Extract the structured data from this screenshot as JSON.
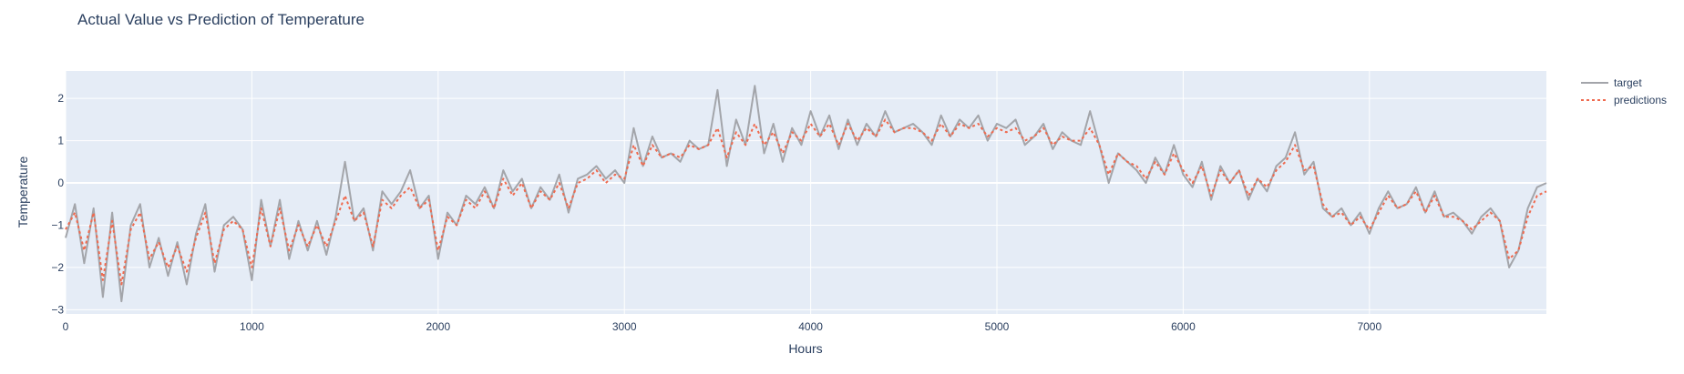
{
  "chart_data": {
    "type": "line",
    "title": "Actual Value vs Prediction of Temperature",
    "xlabel": "Hours",
    "ylabel": "Temperature",
    "xlim": [
      0,
      7950
    ],
    "ylim": [
      -3.1,
      2.65
    ],
    "x_ticks": [
      0,
      1000,
      2000,
      3000,
      4000,
      5000,
      6000,
      7000
    ],
    "y_ticks": [
      -3,
      -2,
      -1,
      0,
      1,
      2
    ],
    "grid": true,
    "legend_position": "top-right",
    "colors": {
      "target": "#a3a5aa",
      "predictions": "#ef6a4f",
      "plot_bg": "#e5ecf6",
      "grid": "#ffffff"
    },
    "series": [
      {
        "name": "target",
        "line": "solid",
        "x": [
          0,
          50,
          100,
          150,
          200,
          250,
          300,
          350,
          400,
          450,
          500,
          550,
          600,
          650,
          700,
          750,
          800,
          850,
          900,
          950,
          1000,
          1050,
          1100,
          1150,
          1200,
          1250,
          1300,
          1350,
          1400,
          1450,
          1500,
          1550,
          1600,
          1650,
          1700,
          1750,
          1800,
          1850,
          1900,
          1950,
          2000,
          2050,
          2100,
          2150,
          2200,
          2250,
          2300,
          2350,
          2400,
          2450,
          2500,
          2550,
          2600,
          2650,
          2700,
          2750,
          2800,
          2850,
          2900,
          2950,
          3000,
          3050,
          3100,
          3150,
          3200,
          3250,
          3300,
          3350,
          3400,
          3450,
          3500,
          3550,
          3600,
          3650,
          3700,
          3750,
          3800,
          3850,
          3900,
          3950,
          4000,
          4050,
          4100,
          4150,
          4200,
          4250,
          4300,
          4350,
          4400,
          4450,
          4500,
          4550,
          4600,
          4650,
          4700,
          4750,
          4800,
          4850,
          4900,
          4950,
          5000,
          5050,
          5100,
          5150,
          5200,
          5250,
          5300,
          5350,
          5400,
          5450,
          5500,
          5550,
          5600,
          5650,
          5700,
          5750,
          5800,
          5850,
          5900,
          5950,
          6000,
          6050,
          6100,
          6150,
          6200,
          6250,
          6300,
          6350,
          6400,
          6450,
          6500,
          6550,
          6600,
          6650,
          6700,
          6750,
          6800,
          6850,
          6900,
          6950,
          7000,
          7050,
          7100,
          7150,
          7200,
          7250,
          7300,
          7350,
          7400,
          7450,
          7500,
          7550,
          7600,
          7650,
          7700,
          7750,
          7800,
          7850,
          7900,
          7950
        ],
        "values": [
          -1.3,
          -0.5,
          -1.9,
          -0.6,
          -2.7,
          -0.7,
          -2.8,
          -1.0,
          -0.5,
          -2.0,
          -1.3,
          -2.2,
          -1.4,
          -2.4,
          -1.2,
          -0.5,
          -2.1,
          -1.0,
          -0.8,
          -1.1,
          -2.3,
          -0.4,
          -1.5,
          -0.4,
          -1.8,
          -0.9,
          -1.6,
          -0.9,
          -1.7,
          -0.8,
          0.5,
          -0.9,
          -0.6,
          -1.6,
          -0.2,
          -0.5,
          -0.2,
          0.3,
          -0.6,
          -0.3,
          -1.8,
          -0.7,
          -1.0,
          -0.3,
          -0.5,
          -0.1,
          -0.6,
          0.3,
          -0.2,
          0.1,
          -0.6,
          -0.1,
          -0.4,
          0.2,
          -0.7,
          0.1,
          0.2,
          0.4,
          0.1,
          0.3,
          0.0,
          1.3,
          0.4,
          1.1,
          0.6,
          0.7,
          0.5,
          1.0,
          0.8,
          0.9,
          2.2,
          0.4,
          1.5,
          0.9,
          2.3,
          0.7,
          1.4,
          0.5,
          1.3,
          0.9,
          1.7,
          1.1,
          1.6,
          0.8,
          1.5,
          0.9,
          1.4,
          1.1,
          1.7,
          1.2,
          1.3,
          1.4,
          1.2,
          0.9,
          1.6,
          1.1,
          1.5,
          1.3,
          1.6,
          1.0,
          1.4,
          1.3,
          1.5,
          0.9,
          1.1,
          1.4,
          0.8,
          1.2,
          1.0,
          0.9,
          1.7,
          0.9,
          0.0,
          0.7,
          0.5,
          0.3,
          0.0,
          0.6,
          0.2,
          0.9,
          0.2,
          -0.1,
          0.5,
          -0.4,
          0.4,
          0.0,
          0.3,
          -0.4,
          0.1,
          -0.2,
          0.4,
          0.6,
          1.2,
          0.2,
          0.5,
          -0.6,
          -0.8,
          -0.6,
          -1.0,
          -0.7,
          -1.2,
          -0.6,
          -0.2,
          -0.6,
          -0.5,
          -0.1,
          -0.7,
          -0.2,
          -0.8,
          -0.7,
          -0.9,
          -1.2,
          -0.8,
          -0.6,
          -0.9,
          -2.0,
          -1.6,
          -0.6,
          -0.1,
          0.0
        ]
      },
      {
        "name": "predictions",
        "line": "dot",
        "x": [
          0,
          50,
          100,
          150,
          200,
          250,
          300,
          350,
          400,
          450,
          500,
          550,
          600,
          650,
          700,
          750,
          800,
          850,
          900,
          950,
          1000,
          1050,
          1100,
          1150,
          1200,
          1250,
          1300,
          1350,
          1400,
          1450,
          1500,
          1550,
          1600,
          1650,
          1700,
          1750,
          1800,
          1850,
          1900,
          1950,
          2000,
          2050,
          2100,
          2150,
          2200,
          2250,
          2300,
          2350,
          2400,
          2450,
          2500,
          2550,
          2600,
          2650,
          2700,
          2750,
          2800,
          2850,
          2900,
          2950,
          3000,
          3050,
          3100,
          3150,
          3200,
          3250,
          3300,
          3350,
          3400,
          3450,
          3500,
          3550,
          3600,
          3650,
          3700,
          3750,
          3800,
          3850,
          3900,
          3950,
          4000,
          4050,
          4100,
          4150,
          4200,
          4250,
          4300,
          4350,
          4400,
          4450,
          4500,
          4550,
          4600,
          4650,
          4700,
          4750,
          4800,
          4850,
          4900,
          4950,
          5000,
          5050,
          5100,
          5150,
          5200,
          5250,
          5300,
          5350,
          5400,
          5450,
          5500,
          5550,
          5600,
          5650,
          5700,
          5750,
          5800,
          5850,
          5900,
          5950,
          6000,
          6050,
          6100,
          6150,
          6200,
          6250,
          6300,
          6350,
          6400,
          6450,
          6500,
          6550,
          6600,
          6650,
          6700,
          6750,
          6800,
          6850,
          6900,
          6950,
          7000,
          7050,
          7100,
          7150,
          7200,
          7250,
          7300,
          7350,
          7400,
          7450,
          7500,
          7550,
          7600,
          7650,
          7700,
          7750,
          7800,
          7850,
          7900,
          7950
        ],
        "values": [
          -1.1,
          -0.7,
          -1.6,
          -0.7,
          -2.3,
          -0.9,
          -2.4,
          -1.1,
          -0.7,
          -1.8,
          -1.4,
          -2.0,
          -1.5,
          -2.1,
          -1.3,
          -0.7,
          -1.9,
          -1.1,
          -0.9,
          -1.1,
          -2.0,
          -0.6,
          -1.5,
          -0.6,
          -1.6,
          -1.0,
          -1.5,
          -1.0,
          -1.5,
          -0.9,
          -0.3,
          -0.9,
          -0.7,
          -1.5,
          -0.4,
          -0.6,
          -0.3,
          -0.1,
          -0.6,
          -0.4,
          -1.6,
          -0.8,
          -1.0,
          -0.4,
          -0.6,
          -0.2,
          -0.6,
          0.1,
          -0.3,
          0.0,
          -0.6,
          -0.2,
          -0.4,
          0.0,
          -0.6,
          0.0,
          0.1,
          0.3,
          0.0,
          0.2,
          0.1,
          0.9,
          0.4,
          0.9,
          0.6,
          0.7,
          0.6,
          0.9,
          0.8,
          0.9,
          1.3,
          0.6,
          1.2,
          0.9,
          1.4,
          0.9,
          1.2,
          0.7,
          1.2,
          1.0,
          1.4,
          1.1,
          1.4,
          0.9,
          1.4,
          1.0,
          1.3,
          1.1,
          1.5,
          1.2,
          1.3,
          1.3,
          1.2,
          1.0,
          1.4,
          1.1,
          1.4,
          1.3,
          1.4,
          1.1,
          1.3,
          1.2,
          1.3,
          1.0,
          1.1,
          1.3,
          0.9,
          1.1,
          1.0,
          1.0,
          1.3,
          0.9,
          0.2,
          0.7,
          0.5,
          0.4,
          0.1,
          0.5,
          0.2,
          0.7,
          0.3,
          0.0,
          0.4,
          -0.3,
          0.3,
          0.0,
          0.3,
          -0.3,
          0.1,
          -0.1,
          0.3,
          0.5,
          0.9,
          0.3,
          0.4,
          -0.5,
          -0.8,
          -0.7,
          -1.0,
          -0.8,
          -1.1,
          -0.7,
          -0.3,
          -0.6,
          -0.5,
          -0.2,
          -0.7,
          -0.3,
          -0.8,
          -0.8,
          -0.9,
          -1.1,
          -0.9,
          -0.7,
          -0.9,
          -1.8,
          -1.6,
          -0.8,
          -0.3,
          -0.2
        ]
      }
    ]
  }
}
